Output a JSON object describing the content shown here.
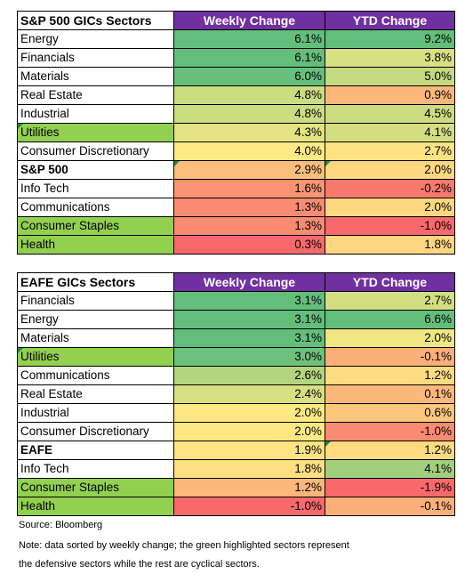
{
  "colors": {
    "header_bg": "#7030a0",
    "header_text": "#ffffff",
    "defensive_highlight": "#92d050",
    "scale_high": "#63be7b",
    "scale_mid": "#ffeb84",
    "scale_low": "#f8696b"
  },
  "sp500": {
    "title": "S&P 500 GICs Sectors",
    "col_weekly": "Weekly Change",
    "col_ytd": "YTD Change",
    "rows": [
      {
        "sector": "Energy",
        "weekly": "6.1%",
        "ytd": "9.2%",
        "wk_color": "#63be7b",
        "ytd_color": "#63be7b",
        "defensive": false,
        "bold": false,
        "tri_sector": false,
        "tri_weekly": false,
        "tri_ytd": false
      },
      {
        "sector": "Financials",
        "weekly": "6.1%",
        "ytd": "3.8%",
        "wk_color": "#63be7b",
        "ytd_color": "#d8e082",
        "defensive": false,
        "bold": false,
        "tri_sector": false,
        "tri_weekly": false,
        "tri_ytd": false
      },
      {
        "sector": "Materials",
        "weekly": "6.0%",
        "ytd": "5.0%",
        "wk_color": "#67bf7c",
        "ytd_color": "#c4d980",
        "defensive": false,
        "bold": false,
        "tri_sector": false,
        "tri_weekly": false,
        "tri_ytd": false
      },
      {
        "sector": "Real Estate",
        "weekly": "4.8%",
        "ytd": "0.9%",
        "wk_color": "#cbdc81",
        "ytd_color": "#fcb77a",
        "defensive": false,
        "bold": false,
        "tri_sector": false,
        "tri_weekly": false,
        "tri_ytd": false
      },
      {
        "sector": "Industrial",
        "weekly": "4.8%",
        "ytd": "4.5%",
        "wk_color": "#cbdc81",
        "ytd_color": "#ccdc81",
        "defensive": false,
        "bold": false,
        "tri_sector": false,
        "tri_weekly": false,
        "tri_ytd": false
      },
      {
        "sector": "Utilities",
        "weekly": "4.3%",
        "ytd": "4.1%",
        "wk_color": "#e4e383",
        "ytd_color": "#d4de81",
        "defensive": true,
        "bold": false,
        "tri_sector": true,
        "tri_weekly": false,
        "tri_ytd": false
      },
      {
        "sector": "Consumer Discretionary",
        "weekly": "4.0%",
        "ytd": "2.7%",
        "wk_color": "#ffea84",
        "ytd_color": "#fee382",
        "defensive": false,
        "bold": false,
        "tri_sector": false,
        "tri_weekly": false,
        "tri_ytd": false
      },
      {
        "sector": "S&P 500",
        "weekly": "2.9%",
        "ytd": "2.0%",
        "wk_color": "#fcbf7b",
        "ytd_color": "#fed880",
        "defensive": false,
        "bold": true,
        "tri_sector": false,
        "tri_weekly": true,
        "tri_ytd": true
      },
      {
        "sector": "Info Tech",
        "weekly": "1.6%",
        "ytd": "-0.2%",
        "wk_color": "#fa9473",
        "ytd_color": "#f8796e",
        "defensive": false,
        "bold": false,
        "tri_sector": false,
        "tri_weekly": false,
        "tri_ytd": false
      },
      {
        "sector": "Communications",
        "weekly": "1.3%",
        "ytd": "2.0%",
        "wk_color": "#f98b71",
        "ytd_color": "#fed880",
        "defensive": false,
        "bold": false,
        "tri_sector": false,
        "tri_weekly": false,
        "tri_ytd": false
      },
      {
        "sector": "Consumer Staples",
        "weekly": "1.3%",
        "ytd": "-1.0%",
        "wk_color": "#f98b71",
        "ytd_color": "#f8696b",
        "defensive": true,
        "bold": false,
        "tri_sector": false,
        "tri_weekly": false,
        "tri_ytd": false
      },
      {
        "sector": "Health",
        "weekly": "0.3%",
        "ytd": "1.8%",
        "wk_color": "#f8696b",
        "ytd_color": "#fed580",
        "defensive": true,
        "bold": false,
        "tri_sector": false,
        "tri_weekly": false,
        "tri_ytd": false
      }
    ]
  },
  "eafe": {
    "title": "EAFE GICs Sectors",
    "col_weekly": "Weekly Change",
    "col_ytd": "YTD Change",
    "rows": [
      {
        "sector": "Financials",
        "weekly": "3.1%",
        "ytd": "2.7%",
        "wk_color": "#63be7b",
        "ytd_color": "#d3de81",
        "defensive": false,
        "bold": false,
        "tri_sector": false,
        "tri_weekly": false,
        "tri_ytd": false
      },
      {
        "sector": "Energy",
        "weekly": "3.1%",
        "ytd": "6.6%",
        "wk_color": "#63be7b",
        "ytd_color": "#63be7b",
        "defensive": false,
        "bold": false,
        "tri_sector": false,
        "tri_weekly": false,
        "tri_ytd": false
      },
      {
        "sector": "Materials",
        "weekly": "3.1%",
        "ytd": "2.0%",
        "wk_color": "#63be7b",
        "ytd_color": "#f0e783",
        "defensive": false,
        "bold": false,
        "tri_sector": false,
        "tri_weekly": false,
        "tri_ytd": false
      },
      {
        "sector": "Utilities",
        "weekly": "3.0%",
        "ytd": "-0.1%",
        "wk_color": "#6ec17c",
        "ytd_color": "#fcb079",
        "defensive": true,
        "bold": false,
        "tri_sector": true,
        "tri_weekly": false,
        "tri_ytd": false
      },
      {
        "sector": "Communications",
        "weekly": "2.6%",
        "ytd": "1.2%",
        "wk_color": "#b4d47f",
        "ytd_color": "#feda81",
        "defensive": false,
        "bold": false,
        "tri_sector": false,
        "tri_weekly": false,
        "tri_ytd": false
      },
      {
        "sector": "Real Estate",
        "weekly": "2.4%",
        "ytd": "0.1%",
        "wk_color": "#d8e082",
        "ytd_color": "#fcb87a",
        "defensive": false,
        "bold": false,
        "tri_sector": false,
        "tri_weekly": false,
        "tri_ytd": false
      },
      {
        "sector": "Industrial",
        "weekly": "2.0%",
        "ytd": "0.6%",
        "wk_color": "#fee883",
        "ytd_color": "#fdc67d",
        "defensive": false,
        "bold": false,
        "tri_sector": false,
        "tri_weekly": false,
        "tri_ytd": false
      },
      {
        "sector": "Consumer Discretionary",
        "weekly": "2.0%",
        "ytd": "-1.0%",
        "wk_color": "#fee883",
        "ytd_color": "#f98b71",
        "defensive": false,
        "bold": false,
        "tri_sector": false,
        "tri_weekly": false,
        "tri_ytd": false
      },
      {
        "sector": "EAFE",
        "weekly": "1.9%",
        "ytd": "1.2%",
        "wk_color": "#fee482",
        "ytd_color": "#feda81",
        "defensive": false,
        "bold": true,
        "tri_sector": false,
        "tri_weekly": false,
        "tri_ytd": true
      },
      {
        "sector": "Info Tech",
        "weekly": "1.8%",
        "ytd": "4.1%",
        "wk_color": "#fedf81",
        "ytd_color": "#a2cf7e",
        "defensive": false,
        "bold": false,
        "tri_sector": false,
        "tri_weekly": false,
        "tri_ytd": false
      },
      {
        "sector": "Consumer Staples",
        "weekly": "1.2%",
        "ytd": "-1.9%",
        "wk_color": "#fcb77a",
        "ytd_color": "#f8696b",
        "defensive": true,
        "bold": false,
        "tri_sector": false,
        "tri_weekly": false,
        "tri_ytd": false
      },
      {
        "sector": "Health",
        "weekly": "-1.0%",
        "ytd": "-0.1%",
        "wk_color": "#f8696b",
        "ytd_color": "#fcb079",
        "defensive": true,
        "bold": false,
        "tri_sector": false,
        "tri_weekly": false,
        "tri_ytd": false
      }
    ]
  },
  "notes": {
    "source": "Source: Bloomberg",
    "line1": "Note: data sorted by weekly change; the green highlighted sectors represent",
    "line2": "the defensive sectors while the rest are cyclical sectors."
  }
}
